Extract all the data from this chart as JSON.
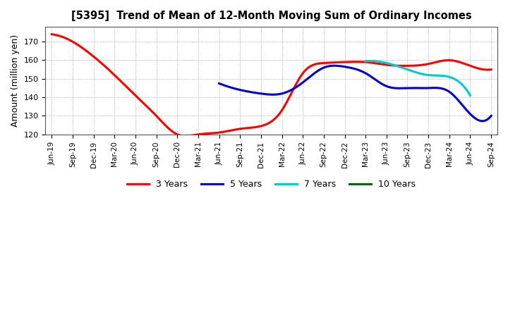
{
  "title": "[5395]  Trend of Mean of 12-Month Moving Sum of Ordinary Incomes",
  "ylabel": "Amount (million yen)",
  "ylim": [
    120,
    178
  ],
  "yticks": [
    120,
    130,
    140,
    150,
    160,
    170
  ],
  "background_color": "#ffffff",
  "grid_color": "#aaaaaa",
  "x_labels": [
    "Jun-19",
    "Sep-19",
    "Dec-19",
    "Mar-20",
    "Jun-20",
    "Sep-20",
    "Dec-20",
    "Mar-21",
    "Jun-21",
    "Sep-21",
    "Dec-21",
    "Mar-22",
    "Jun-22",
    "Sep-22",
    "Dec-22",
    "Mar-23",
    "Jun-23",
    "Sep-23",
    "Dec-23",
    "Mar-24",
    "Jun-24",
    "Sep-24"
  ],
  "series": {
    "3 Years": {
      "color": "#ff0000",
      "data": [
        174,
        170,
        162,
        152,
        141,
        130,
        120,
        120,
        121,
        123,
        124.5,
        133,
        153,
        158.5,
        159,
        159,
        157.5,
        157,
        158,
        160,
        157,
        155
      ]
    },
    "5 Years": {
      "color": "#0000cc",
      "data": [
        null,
        null,
        null,
        null,
        null,
        null,
        null,
        null,
        147.5,
        144,
        142,
        142,
        148,
        156,
        156.5,
        153,
        146,
        145,
        145,
        143,
        131,
        130
      ]
    },
    "7 Years": {
      "color": "#00cccc",
      "data": [
        null,
        null,
        null,
        null,
        null,
        null,
        null,
        null,
        null,
        null,
        null,
        null,
        null,
        null,
        null,
        159.5,
        158.5,
        155,
        152,
        151,
        141,
        null
      ]
    },
    "10 Years": {
      "color": "#006600",
      "data": [
        null,
        null,
        null,
        null,
        null,
        null,
        null,
        null,
        null,
        null,
        null,
        null,
        null,
        null,
        null,
        null,
        null,
        null,
        null,
        null,
        null,
        null
      ]
    }
  },
  "legend_entries": [
    "3 Years",
    "5 Years",
    "7 Years",
    "10 Years"
  ],
  "legend_colors": [
    "#ff0000",
    "#0000cc",
    "#00cccc",
    "#006600"
  ]
}
